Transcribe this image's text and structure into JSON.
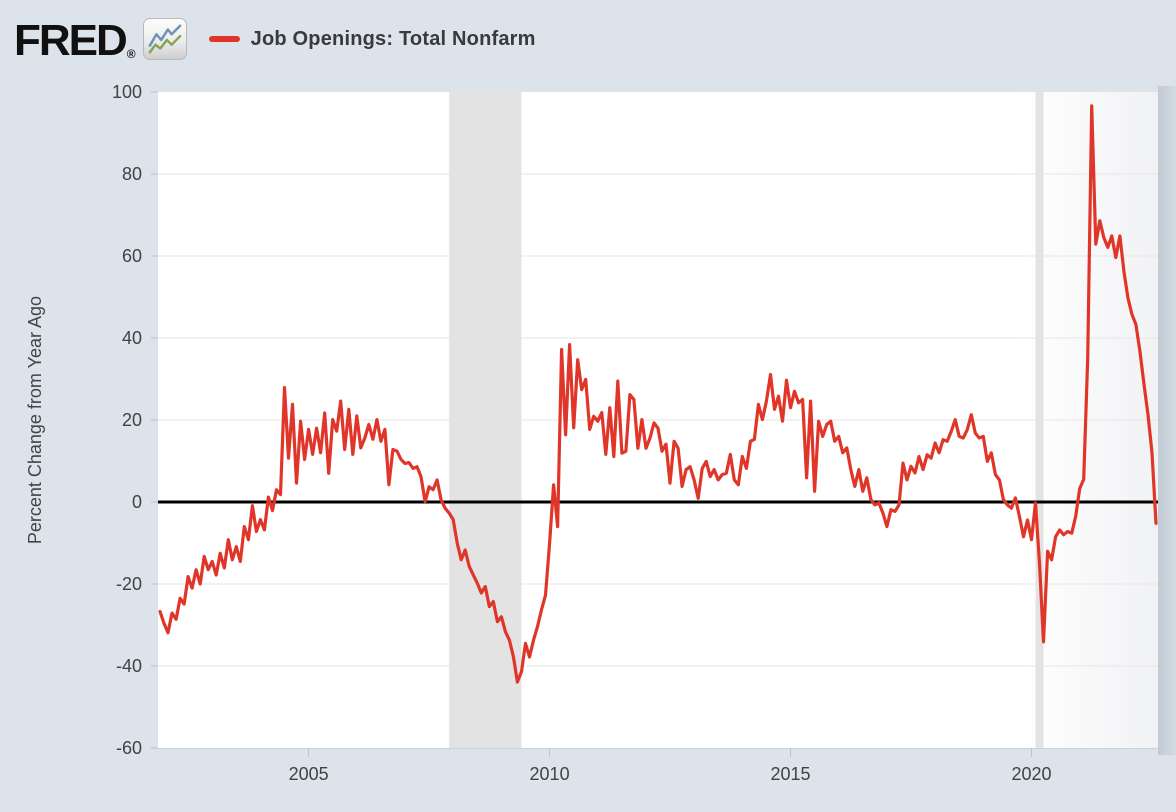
{
  "header": {
    "brand": "FRED",
    "registered": "®",
    "series_title": "Job Openings: Total Nonfarm"
  },
  "chart_data": {
    "type": "line",
    "title": "Job Openings: Total Nonfarm",
    "xlabel": "",
    "ylabel": "Percent Change from Year Ago",
    "frequency": "monthly",
    "x_start": "2001-12",
    "x_end": "2022-08",
    "ylim": [
      -60,
      100
    ],
    "grid": "horizontal-only",
    "legend_position": "top-header",
    "y_ticks": [
      100,
      80,
      60,
      40,
      20,
      0,
      -20,
      -40,
      -60
    ],
    "x_ticks": [
      {
        "label": "2005",
        "index": 37
      },
      {
        "label": "2010",
        "index": 97
      },
      {
        "label": "2015",
        "index": 157
      },
      {
        "label": "2020",
        "index": 217
      }
    ],
    "recessions": [
      {
        "name": "2008-recession",
        "start_index": 72,
        "end_index": 90
      },
      {
        "name": "2020-recession",
        "start_index": 218,
        "end_index": 220
      }
    ],
    "series": [
      {
        "name": "Job Openings: Total Nonfarm",
        "units": "Percent Change from Year Ago",
        "values": [
          -26.7,
          -29.6,
          -31.9,
          -27.1,
          -28.6,
          -23.5,
          -24.9,
          -18.2,
          -21.0,
          -16.5,
          -20.0,
          -13.3,
          -16.5,
          -14.5,
          -17.8,
          -12.5,
          -16.1,
          -9.2,
          -14.1,
          -10.9,
          -14.5,
          -6.0,
          -9.2,
          -0.9,
          -7.2,
          -4.3,
          -6.8,
          1.2,
          -2.1,
          3.0,
          1.8,
          27.9,
          10.7,
          23.8,
          4.6,
          19.7,
          10.4,
          17.7,
          11.6,
          18.0,
          12.0,
          21.7,
          7.0,
          20.1,
          17.3,
          24.6,
          12.8,
          22.6,
          11.6,
          21.0,
          13.2,
          15.6,
          18.9,
          15.3,
          20.1,
          14.8,
          17.7,
          4.2,
          12.8,
          12.4,
          10.4,
          9.4,
          9.6,
          8.2,
          8.6,
          6.2,
          0.1,
          3.7,
          3.0,
          5.4,
          0.5,
          -1.5,
          -2.7,
          -4.3,
          -10.0,
          -14.1,
          -11.7,
          -15.7,
          -17.8,
          -19.8,
          -22.2,
          -20.6,
          -25.5,
          -24.3,
          -29.2,
          -28.0,
          -31.6,
          -33.7,
          -37.7,
          -43.9,
          -41.4,
          -34.5,
          -37.8,
          -33.7,
          -30.4,
          -26.3,
          -22.7,
          -10.0,
          4.2,
          -6.0,
          37.2,
          16.4,
          38.4,
          18.1,
          34.7,
          27.4,
          29.9,
          17.7,
          20.9,
          19.7,
          21.8,
          11.6,
          23.0,
          11.1,
          29.5,
          11.9,
          12.4,
          26.2,
          25.0,
          13.1,
          20.1,
          13.1,
          15.6,
          19.3,
          18.0,
          12.4,
          14.1,
          4.6,
          14.8,
          13.1,
          3.8,
          7.9,
          8.6,
          5.4,
          0.9,
          8.2,
          9.9,
          6.2,
          7.9,
          5.4,
          6.7,
          7.0,
          11.6,
          5.4,
          4.2,
          11.1,
          8.2,
          14.8,
          15.3,
          23.8,
          20.1,
          24.6,
          31.1,
          22.6,
          25.8,
          19.7,
          29.7,
          23.0,
          27.0,
          24.2,
          25.0,
          5.9,
          24.6,
          2.6,
          19.7,
          16.0,
          18.9,
          19.7,
          14.8,
          16.0,
          12.0,
          13.2,
          7.9,
          3.8,
          7.9,
          2.6,
          5.9,
          0.6,
          -0.7,
          -0.2,
          -2.7,
          -6.0,
          -1.9,
          -2.3,
          -0.7,
          9.5,
          5.4,
          8.7,
          7.1,
          11.1,
          7.9,
          11.5,
          10.7,
          14.4,
          12.0,
          15.2,
          14.8,
          17.2,
          20.1,
          16.0,
          15.6,
          17.6,
          21.3,
          16.8,
          15.6,
          16.0,
          9.9,
          12.0,
          6.7,
          5.4,
          0.6,
          -0.7,
          -1.5,
          1.0,
          -3.6,
          -8.5,
          -4.4,
          -9.2,
          -0.2,
          -15.0,
          -34.1,
          -12.0,
          -14.1,
          -8.5,
          -6.8,
          -8.0,
          -7.2,
          -7.6,
          -3.5,
          3.3,
          5.5,
          35.0,
          96.6,
          62.9,
          68.6,
          64.5,
          62.1,
          64.9,
          59.6,
          64.9,
          56.3,
          49.8,
          45.8,
          43.3,
          36.8,
          28.7,
          21.3,
          12.0,
          -5.2
        ]
      }
    ],
    "colors": {
      "line": "#e0362a",
      "recession_band": "#e3e3e3",
      "zero_line": "#000000",
      "gridline": "#e6e6e6",
      "plot_background": "#ffffff",
      "page_background": "#dce3eb",
      "tick_text": "#424242",
      "axis_line": "#c9d1da",
      "tick_mark": "#b9c3cd",
      "logo_icon_blue": "#6f94b3",
      "logo_icon_green": "#85a554"
    }
  }
}
